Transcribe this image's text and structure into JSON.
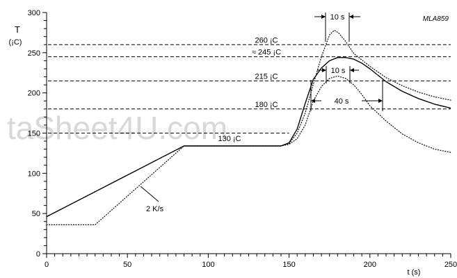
{
  "chart_data": {
    "type": "line",
    "code": "MLA859",
    "watermark": "taSheet4U.com",
    "ylabel": "T",
    "ylabel_unit": "(¡C)",
    "xlabel": "t (s)",
    "xlim": [
      0,
      250
    ],
    "ylim": [
      0,
      300
    ],
    "xticks": [
      0,
      50,
      100,
      150,
      200,
      250
    ],
    "yticks": [
      0,
      50,
      100,
      150,
      200,
      250,
      300
    ],
    "grid": false,
    "hlines": [
      {
        "y": 260,
        "label": "260 ¡C"
      },
      {
        "y": 245,
        "label": "≈ 245 ¡C"
      },
      {
        "y": 215,
        "label": "215 ¡C"
      },
      {
        "y": 180,
        "label": "180 ¡C"
      },
      {
        "y": 150,
        "label": ""
      }
    ],
    "series": [
      {
        "style": "solid",
        "x": [
          0,
          85,
          145,
          150,
          155,
          160,
          165,
          170,
          175,
          180,
          185,
          190,
          195,
          200,
          210,
          220,
          230,
          240,
          250
        ],
        "y": [
          46,
          134,
          134,
          138,
          155,
          187,
          217,
          231,
          240,
          244,
          244,
          242,
          237,
          230,
          214,
          202,
          193,
          186,
          181
        ]
      },
      {
        "style": "dotted",
        "x": [
          0,
          30,
          85,
          145,
          150,
          155,
          160,
          165,
          170,
          175,
          178,
          181,
          185,
          190,
          200,
          210,
          220,
          230,
          240,
          250
        ],
        "y": [
          36,
          36,
          134,
          134,
          137,
          150,
          175,
          211,
          245,
          272,
          278,
          274,
          264,
          249,
          233,
          219,
          209,
          201,
          195,
          191
        ]
      },
      {
        "style": "dotted",
        "x": [
          0,
          85,
          145,
          150,
          155,
          160,
          165,
          170,
          175,
          180,
          185,
          190,
          195,
          200,
          210,
          220,
          230,
          240,
          250
        ],
        "y": [
          46,
          134,
          134,
          136,
          143,
          160,
          190,
          208,
          218,
          221,
          218,
          210,
          198,
          184,
          165,
          149,
          138,
          130,
          126
        ]
      }
    ],
    "annotations": {
      "plateau": "130 ¡C",
      "slope": "2 K/s",
      "peak_window": "10 s",
      "window_215": "10 s",
      "window_180": "40 s"
    }
  }
}
